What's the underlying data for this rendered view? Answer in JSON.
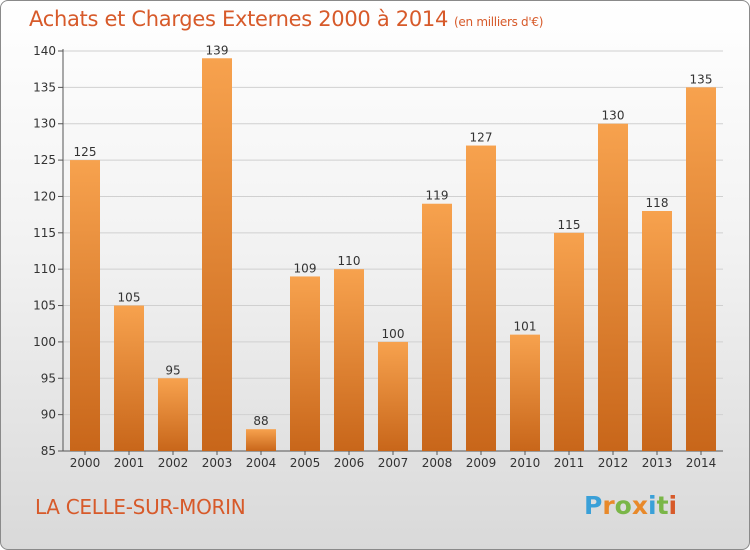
{
  "header": {
    "title": "Achats et Charges Externes 2000 à 2014",
    "subtitle": "(en milliers d'€)"
  },
  "footer": {
    "place": "LA CELLE-SUR-MORIN",
    "brand": "Proxiti",
    "brand_colors": [
      "#3aa0d8",
      "#e8892a",
      "#7ab648",
      "#e8892a",
      "#3aa0d8",
      "#7ab648",
      "#d75a2a"
    ]
  },
  "colors": {
    "title": "#d75a2a",
    "bar_light": "#f7a24e",
    "bar_dark": "#c8661a",
    "grid": "#d0d0d0"
  },
  "chart_data": {
    "type": "bar",
    "categories": [
      "2000",
      "2001",
      "2002",
      "2003",
      "2004",
      "2005",
      "2006",
      "2007",
      "2008",
      "2009",
      "2010",
      "2011",
      "2012",
      "2013",
      "2014"
    ],
    "values": [
      125,
      105,
      95,
      139,
      88,
      109,
      110,
      100,
      119,
      127,
      101,
      115,
      130,
      118,
      135
    ],
    "ylim": [
      85,
      140
    ],
    "yticks": [
      85,
      90,
      95,
      100,
      105,
      110,
      115,
      120,
      125,
      130,
      135,
      140
    ],
    "grid": true,
    "legend": "none"
  }
}
